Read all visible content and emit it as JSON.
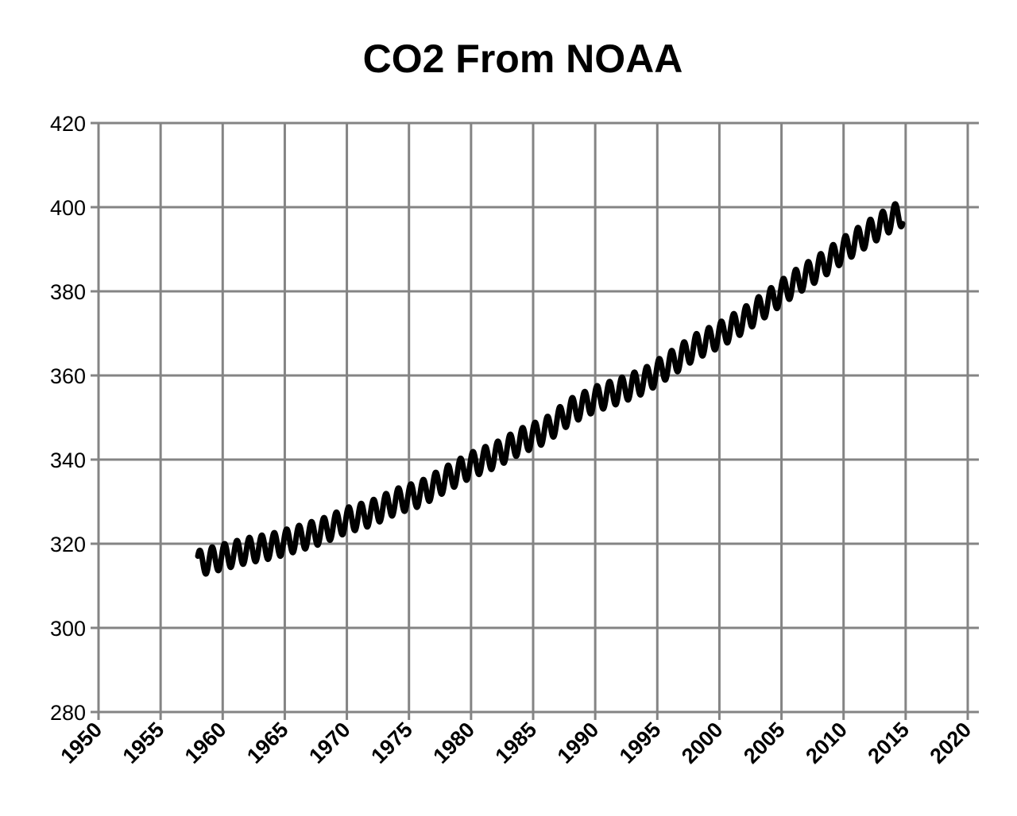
{
  "chart_data": {
    "type": "line",
    "title": "CO2 From NOAA",
    "xlabel": "",
    "ylabel": "",
    "xlim": [
      1950,
      2020
    ],
    "ylim": [
      280,
      420
    ],
    "x_ticks": [
      1950,
      1955,
      1960,
      1965,
      1970,
      1975,
      1980,
      1985,
      1990,
      1995,
      2000,
      2005,
      2010,
      2015,
      2020
    ],
    "x_tick_labels": [
      "1950",
      "1955",
      "1960",
      "1965",
      "1970",
      "1975",
      "1980",
      "1985",
      "1990",
      "1995",
      "2000",
      "2005",
      "2010",
      "2015",
      "2020"
    ],
    "y_ticks": [
      280,
      300,
      320,
      340,
      360,
      380,
      400,
      420
    ],
    "y_tick_labels": [
      "280",
      "300",
      "320",
      "340",
      "360",
      "380",
      "400",
      "420"
    ],
    "grid": true,
    "legend": "none",
    "series": [
      {
        "name": "CO2",
        "color": "#000000",
        "x": [
          1958,
          1960,
          1962,
          1964,
          1966,
          1968,
          1970,
          1972,
          1974,
          1976,
          1978,
          1980,
          1982,
          1984,
          1986,
          1988,
          1990,
          1992,
          1994,
          1996,
          1998,
          2000,
          2002,
          2004,
          2006,
          2008,
          2010,
          2012,
          2014,
          2014.75
        ],
        "y": [
          315.3,
          316.9,
          318.4,
          319.5,
          321.2,
          323.0,
          325.6,
          327.3,
          330.1,
          332.0,
          335.4,
          338.7,
          341.1,
          344.4,
          346.9,
          351.5,
          354.4,
          356.4,
          358.8,
          362.6,
          366.7,
          369.6,
          373.2,
          377.5,
          381.9,
          385.6,
          389.9,
          393.8,
          397.6,
          398.5
        ],
        "seasonal_amplitude_ppm": 3
      }
    ]
  }
}
